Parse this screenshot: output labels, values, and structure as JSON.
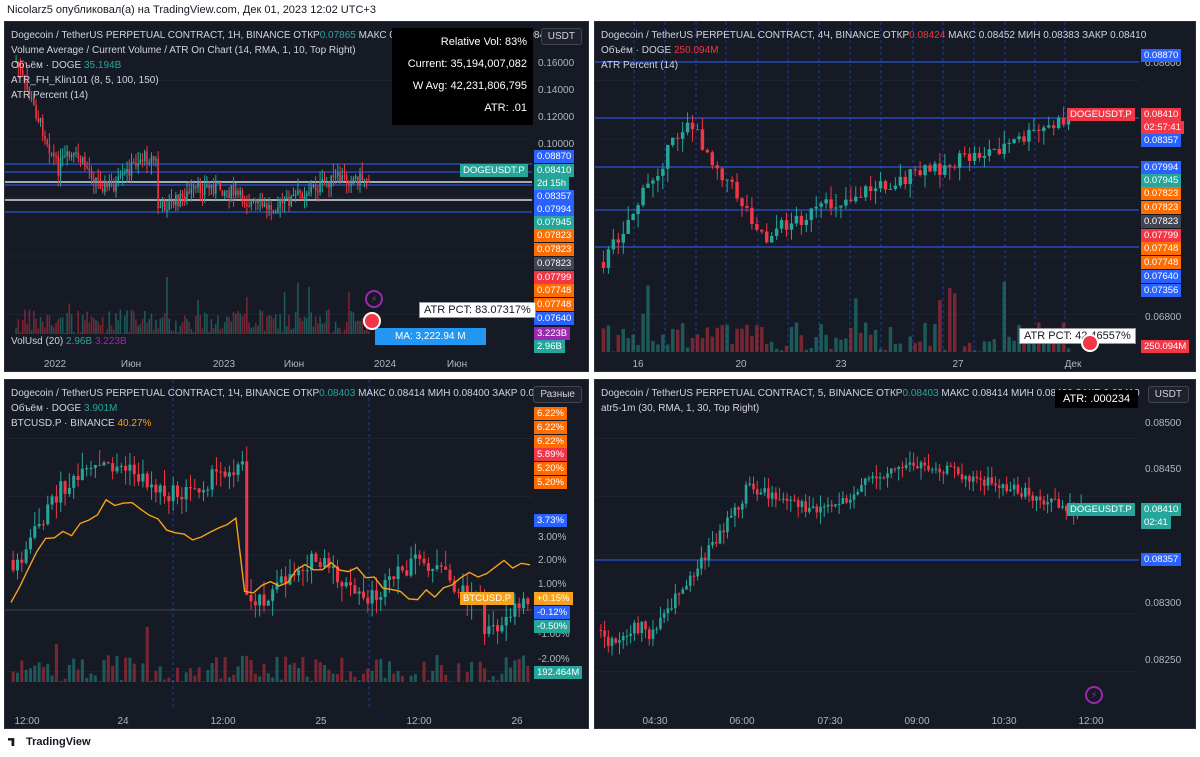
{
  "header": {
    "text": "Nicolarz5 опубликовал(а) на TradingView.com, Дек 01, 2023 12:02 UTC+3"
  },
  "footer": {
    "brand": "TradingView"
  },
  "colors": {
    "up": "#26a69a",
    "down": "#f23645",
    "bg": "#161a25",
    "hline": "#2962ff",
    "orange": "#f7a21b"
  },
  "panes": [
    {
      "id": "p1",
      "currency_button": "USDT",
      "legend": [
        {
          "text": "Dogecoin / TetherUS PERPETUAL CONTRACT, 1H, BINANCE  ОТКР",
          "val": "0.07865",
          "cls": "g",
          "rest": " МАКС 0.08511 МИН 0.07667 ЗАКР 0.08410"
        },
        {
          "text": "Volume Average / Current Volume / ATR On Chart (14, RMA, 1, 10, Top Right)",
          "val": "",
          "cls": "",
          "rest": ""
        },
        {
          "text": "Объём · DOGE ",
          "val": "35.194B",
          "cls": "g",
          "rest": ""
        },
        {
          "text": "ATR_FH_Klin101 (8, 5, 100, 150)",
          "val": "",
          "cls": "",
          "rest": ""
        },
        {
          "text": "ATR Percent (14)",
          "val": "",
          "cls": "",
          "rest": ""
        }
      ],
      "stats": [
        "Relative Vol: 83%",
        "Current: 35,194,007,082",
        "W Avg: 42,231,806,795",
        "ATR: .01"
      ],
      "atr_pct_label": "ATR PCT: 83.07317%",
      "ma_label": "MA: 3,222.94 M",
      "vol_legend": {
        "text": "VolUsd (20) ",
        "v1": "2.96B",
        "v2": "3.223B"
      },
      "price_axis": [
        "0.16000",
        "0.14000",
        "0.12000",
        "0.10000"
      ],
      "symbol_tag": "DOGEUSDT.P",
      "price_tags": [
        {
          "t": "0.08870",
          "c": "#2962ff"
        },
        {
          "t": "0.08410",
          "c": "#26a69a"
        },
        {
          "t": "2d 15h",
          "c": "#26a69a"
        },
        {
          "t": "0.08357",
          "c": "#2962ff"
        },
        {
          "t": "0.07994",
          "c": "#2962ff"
        },
        {
          "t": "0.07945",
          "c": "#26a69a"
        },
        {
          "t": "0.07823",
          "c": "#ff6d00"
        },
        {
          "t": "0.07823",
          "c": "#ff6d00"
        },
        {
          "t": "0.07823",
          "c": "#434651"
        },
        {
          "t": "0.07799",
          "c": "#f23645"
        },
        {
          "t": "0.07748",
          "c": "#ff6d00"
        },
        {
          "t": "0.07748",
          "c": "#ff6d00"
        },
        {
          "t": "0.07640",
          "c": "#2962ff"
        },
        {
          "t": "3.223B",
          "c": "#9c27b0"
        },
        {
          "t": "2.96B",
          "c": "#26a69a"
        }
      ],
      "time_axis": [
        "2022",
        "Июн",
        "2023",
        "Июн",
        "2024",
        "Июн"
      ]
    },
    {
      "id": "p2",
      "legend": [
        {
          "text": "Dogecoin / TetherUS PERPETUAL CONTRACT, 4Ч, BINANCE  ОТКР",
          "val": "0.08424",
          "cls": "r",
          "rest": " МАКС 0.08452 МИН 0.08383 ЗАКР 0.08410"
        },
        {
          "text": "Объём · DOGE ",
          "val": "250.094M",
          "cls": "r",
          "rest": ""
        },
        {
          "text": "ATR Percent (14)",
          "val": "",
          "cls": "",
          "rest": ""
        }
      ],
      "price_axis": [
        "0.08600",
        "0.06800"
      ],
      "symbol_tag": "DOGEUSDT.P",
      "price_tags": [
        {
          "t": "0.08870",
          "c": "#2962ff"
        },
        {
          "t": "0.08410",
          "c": "#f23645"
        },
        {
          "t": "02:57:41",
          "c": "#f23645"
        },
        {
          "t": "0.08357",
          "c": "#2962ff"
        },
        {
          "t": "0.07994",
          "c": "#2962ff"
        },
        {
          "t": "0.07945",
          "c": "#26a69a"
        },
        {
          "t": "0.07823",
          "c": "#ff6d00"
        },
        {
          "t": "0.07823",
          "c": "#ff6d00"
        },
        {
          "t": "0.07823",
          "c": "#434651"
        },
        {
          "t": "0.07799",
          "c": "#f23645"
        },
        {
          "t": "0.07748",
          "c": "#ff6d00"
        },
        {
          "t": "0.07748",
          "c": "#ff6d00"
        },
        {
          "t": "0.07640",
          "c": "#2962ff"
        },
        {
          "t": "0.07356",
          "c": "#2962ff"
        },
        {
          "t": "250.094M",
          "c": "#f23645"
        }
      ],
      "atr_pct_label": "ATR PCT: 42.46557%",
      "time_axis": [
        "16",
        "20",
        "23",
        "27",
        "Дек"
      ]
    },
    {
      "id": "p3",
      "currency_button": "Разные",
      "legend": [
        {
          "text": "Dogecoin / TetherUS PERPETUAL CONTRACT, 1Ч, BINANCE  ОТКР",
          "val": "0.08403",
          "cls": "g",
          "rest": " МАКС 0.08414 МИН 0.08400 ЗАКР 0.08410"
        },
        {
          "text": "Объём · DOGE ",
          "val": "3.901M",
          "cls": "g",
          "rest": ""
        },
        {
          "text": "BTCUSD.P · BINANCE ",
          "val": "40.27%",
          "cls": "o",
          "rest": ""
        }
      ],
      "price_axis": [
        "3.00%",
        "2.00%",
        "1.00%",
        "-1.00%",
        "-2.00%"
      ],
      "symbol_tag": "BTCUSD.P",
      "price_tags": [
        {
          "t": "6.22%",
          "c": "#ff6d00"
        },
        {
          "t": "6.22%",
          "c": "#ff6d00"
        },
        {
          "t": "6.22%",
          "c": "#ff6d00"
        },
        {
          "t": "5.89%",
          "c": "#f23645"
        },
        {
          "t": "5.20%",
          "c": "#ff6d00"
        },
        {
          "t": "5.20%",
          "c": "#ff6d00"
        },
        {
          "t": "3.73%",
          "c": "#2962ff"
        },
        {
          "t": "+0.15%",
          "c": "#f7a21b"
        },
        {
          "t": "-0.12%",
          "c": "#2962ff"
        },
        {
          "t": "-0.50%",
          "c": "#26a69a"
        },
        {
          "t": "192.464M",
          "c": "#26a69a"
        }
      ],
      "time_axis": [
        "12:00",
        "24",
        "12:00",
        "25",
        "12:00",
        "26"
      ]
    },
    {
      "id": "p4",
      "currency_button": "USDT",
      "legend": [
        {
          "text": "Dogecoin / TetherUS PERPETUAL CONTRACT, 5, BINANCE  ОТКР",
          "val": "0.08403",
          "cls": "g",
          "rest": " МАКС 0.08414 МИН 0.08400 ЗАКР 0.08410"
        },
        {
          "text": "atr5-1m (30, RMA, 1, 30, Top Right)",
          "val": "",
          "cls": "",
          "rest": ""
        }
      ],
      "atr_label": "ATR: .000234",
      "price_axis": [
        "0.08500",
        "0.08450",
        "0.08300",
        "0.08250"
      ],
      "symbol_tag": "DOGEUSDT.P",
      "price_tags": [
        {
          "t": "0.08410",
          "c": "#26a69a"
        },
        {
          "t": "02:41",
          "c": "#26a69a"
        },
        {
          "t": "0.08357",
          "c": "#2962ff"
        }
      ],
      "time_axis": [
        "04:30",
        "06:00",
        "07:30",
        "09:00",
        "10:30",
        "12:00"
      ]
    }
  ]
}
